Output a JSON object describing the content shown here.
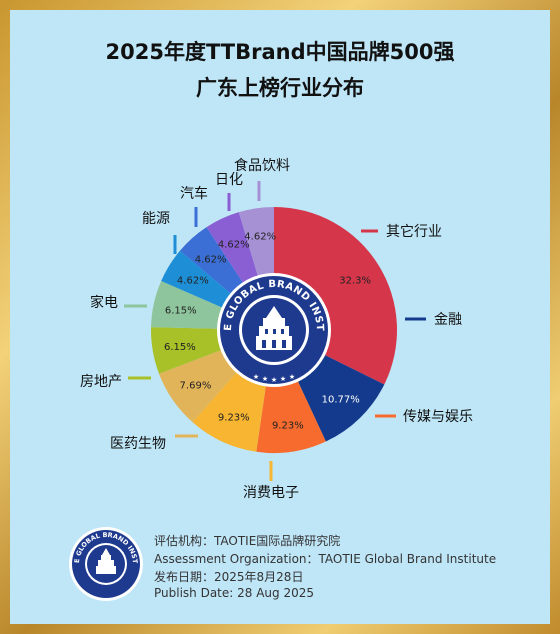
{
  "title_line1": "2025年度TTBrand中国品牌500强",
  "title_line2": "广东上榜行业分布",
  "logo_text": "TAOTIE GLOBAL BRAND INSTITUTE",
  "footer": {
    "org_cn": "评估机构：TAOTIE国际品牌研究院",
    "org_en": "Assessment Organization：TAOTIE Global Brand Institute",
    "date_cn": "发布日期：2025年8月28日",
    "date_en": "Publish Date: 28 Aug 2025"
  },
  "chart_data": {
    "type": "pie",
    "title": "广东上榜行业分布",
    "values": [
      32.3,
      10.77,
      9.23,
      9.23,
      7.69,
      6.15,
      6.15,
      4.62,
      4.62,
      4.62,
      4.62
    ],
    "value_labels": [
      "32.3%",
      "10.77%",
      "9.23%",
      "9.23%",
      "7.69%",
      "6.15%",
      "6.15%",
      "4.62%",
      "4.62%",
      "4.62%",
      "4.62%"
    ],
    "categories": [
      "其它行业",
      "金融",
      "传媒与娱乐",
      "消费电子",
      "医药生物",
      "房地产",
      "家电",
      "能源",
      "汽车",
      "日化",
      "食品饮料"
    ],
    "colors": [
      "#d6364a",
      "#133a8c",
      "#f76c2e",
      "#f7b531",
      "#e2b45a",
      "#a8c128",
      "#8ec59c",
      "#1e8fd6",
      "#3b6fd6",
      "#8a5fd3",
      "#a691d4"
    ],
    "legend": "callouts"
  }
}
